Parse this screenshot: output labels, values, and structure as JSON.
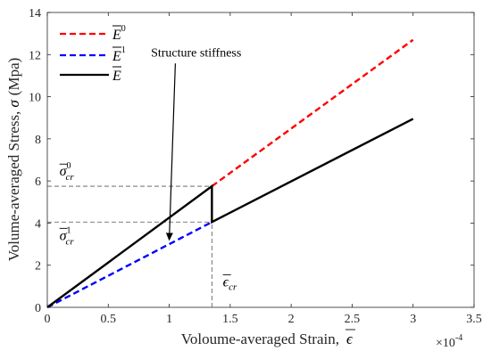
{
  "chart_data": {
    "type": "line",
    "xlabel": "Voloume-averaged Strain,",
    "xlabel_symbol": "ϵ",
    "ylabel": "Volume-averaged Stress,",
    "ylabel_symbol": "σ",
    "ylabel_unit": "(Mpa)",
    "x_multiplier": "×10",
    "x_multiplier_exp": "-4",
    "xlim": [
      0,
      3.5
    ],
    "ylim": [
      0,
      14
    ],
    "xticks": [
      0,
      0.5,
      1,
      1.5,
      2,
      2.5,
      3,
      3.5
    ],
    "xtick_labels": [
      "0",
      "0.5",
      "1",
      "1.5",
      "2",
      "2.5",
      "3",
      "3.5"
    ],
    "yticks": [
      0,
      2,
      4,
      6,
      8,
      10,
      12,
      14
    ],
    "ytick_labels": [
      "0",
      "2",
      "4",
      "6",
      "8",
      "10",
      "12",
      "14"
    ],
    "grid": false,
    "legend_position": "top-left",
    "series": [
      {
        "name": "E",
        "superscript": "0",
        "color": "#ff0000",
        "style": "dashed",
        "x": [
          1.35,
          3.0
        ],
        "y": [
          5.75,
          12.7
        ]
      },
      {
        "name": "E",
        "superscript": "1",
        "color": "#0000ff",
        "style": "dashed",
        "x": [
          0,
          1.35
        ],
        "y": [
          0,
          4.05
        ]
      },
      {
        "name": "E",
        "superscript": "",
        "color": "#000000",
        "style": "solid",
        "x": [
          0,
          1.35,
          1.35,
          3.0
        ],
        "y": [
          0,
          5.75,
          4.05,
          8.95
        ]
      }
    ],
    "reference_lines": [
      {
        "x": [
          0,
          1.35
        ],
        "y": [
          5.75,
          5.75
        ]
      },
      {
        "x": [
          0,
          1.35
        ],
        "y": [
          4.05,
          4.05
        ]
      },
      {
        "x": [
          1.35,
          1.35
        ],
        "y": [
          0,
          4.05
        ]
      }
    ],
    "annotations": {
      "arrow_text": "Structure stiffness",
      "arrow_text_at": [
        0.85,
        12.2
      ],
      "arrow_from": [
        1.05,
        12.0
      ],
      "arrow_to": [
        1.0,
        3.2
      ],
      "sigma0_label": {
        "base": "σ",
        "sup": "0",
        "sub": "cr",
        "at": [
          0.1,
          6.25
        ]
      },
      "sigma1_label": {
        "base": "σ",
        "sup": "1",
        "sub": "cr",
        "at": [
          0.1,
          3.2
        ]
      },
      "eps_label": {
        "base": "ϵ",
        "sub": "cr",
        "at": [
          1.44,
          1.0
        ]
      }
    }
  }
}
